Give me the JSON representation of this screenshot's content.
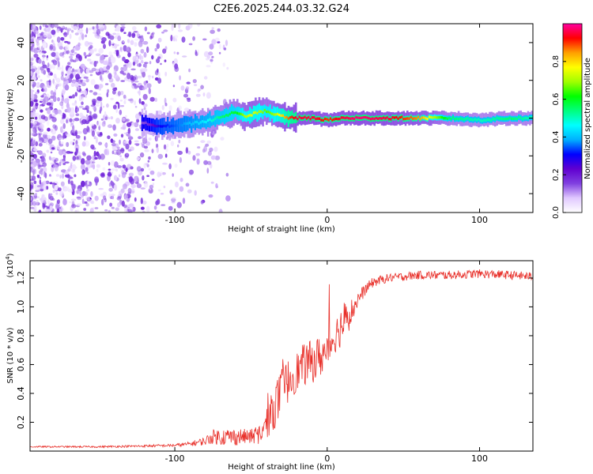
{
  "title": "C2E6.2025.244.03.32.G24",
  "chart_data": [
    {
      "type": "heatmap",
      "name": "spectrogram",
      "xlabel": "Height of straight line (km)",
      "ylabel": "Frequency (Hz)",
      "xlim": [
        -195,
        135
      ],
      "ylim": [
        -50,
        50
      ],
      "xticks": [
        -100,
        0,
        100
      ],
      "xtick_labels": [
        "-100",
        "0",
        "100"
      ],
      "yticks": [
        -40,
        -20,
        0,
        20,
        40
      ],
      "ytick_labels": [
        "-40",
        "-20",
        "0",
        "20",
        "40"
      ],
      "colorbar": {
        "label": "Normalized spectral amplitude",
        "range": [
          0,
          1
        ],
        "ticks": [
          0,
          0.2,
          0.4,
          0.6,
          0.8
        ],
        "tick_labels": [
          "0.0",
          "0.2",
          "0.4",
          "0.6",
          "0.8"
        ],
        "colormap": [
          "#ffffff",
          "#e0c8ff",
          "#8040e0",
          "#6000d0",
          "#0000ff",
          "#00b0ff",
          "#00ffff",
          "#00ff80",
          "#00ff00",
          "#a0ff00",
          "#ffff00",
          "#ffa000",
          "#ff0000",
          "#ff00a0"
        ]
      },
      "ridge": {
        "x": [
          -120,
          -110,
          -100,
          -90,
          -80,
          -70,
          -60,
          -55,
          -50,
          -45,
          -40,
          -35,
          -30,
          -25,
          -20,
          -10,
          0,
          10,
          20,
          40,
          60,
          80,
          100,
          120,
          135
        ],
        "freq": [
          -3,
          -4,
          -4,
          -3,
          -2,
          1,
          3,
          1,
          2,
          3,
          4,
          2,
          1,
          0,
          0,
          0,
          -1,
          0,
          0,
          0,
          0,
          0,
          -1,
          0,
          0
        ],
        "amp": [
          0.15,
          0.3,
          0.35,
          0.4,
          0.45,
          0.55,
          0.6,
          0.7,
          0.75,
          0.7,
          0.65,
          0.7,
          0.8,
          0.9,
          0.95,
          0.95,
          0.9,
          0.95,
          0.98,
          0.95,
          0.85,
          0.55,
          0.5,
          0.55,
          0.5
        ]
      },
      "noise_region_x": [
        -195,
        -75
      ]
    },
    {
      "type": "line",
      "name": "snr",
      "xlabel": "Height of straight line (km)",
      "ylabel": "SNR (10 * v/v)",
      "scale_label": "(x10",
      "scale_exponent": "4",
      "scale_close": ")",
      "xlim": [
        -195,
        135
      ],
      "ylim": [
        0,
        1.32
      ],
      "xticks": [
        -100,
        0,
        100
      ],
      "xtick_labels": [
        "-100",
        "0",
        "100"
      ],
      "yticks": [
        0.2,
        0.4,
        0.6,
        0.8,
        1.0,
        1.2
      ],
      "ytick_labels": [
        "0.2",
        "0.4",
        "0.6",
        "0.8",
        "1.0",
        "1.2"
      ],
      "color": "#e8302a",
      "series": [
        {
          "name": "SNR",
          "x": [
            -195,
            -150,
            -120,
            -100,
            -90,
            -80,
            -75,
            -70,
            -60,
            -50,
            -45,
            -40,
            -35,
            -30,
            -25,
            -20,
            -15,
            -10,
            -5,
            0,
            5,
            10,
            15,
            20,
            25,
            30,
            40,
            50,
            60,
            80,
            100,
            120,
            135
          ],
          "values": [
            0.03,
            0.03,
            0.035,
            0.04,
            0.05,
            0.07,
            0.1,
            0.1,
            0.1,
            0.1,
            0.12,
            0.18,
            0.3,
            0.4,
            0.5,
            0.55,
            0.6,
            0.62,
            0.65,
            0.7,
            0.8,
            0.88,
            0.95,
            1.05,
            1.12,
            1.17,
            1.2,
            1.21,
            1.22,
            1.22,
            1.23,
            1.22,
            1.21
          ],
          "noise_amp": [
            0.005,
            0.006,
            0.008,
            0.01,
            0.015,
            0.03,
            0.05,
            0.06,
            0.06,
            0.05,
            0.07,
            0.1,
            0.15,
            0.18,
            0.15,
            0.14,
            0.15,
            0.15,
            0.15,
            0.14,
            0.12,
            0.15,
            0.1,
            0.06,
            0.04,
            0.035,
            0.03,
            0.03,
            0.03,
            0.03,
            0.03,
            0.03,
            0.03
          ]
        }
      ]
    }
  ]
}
